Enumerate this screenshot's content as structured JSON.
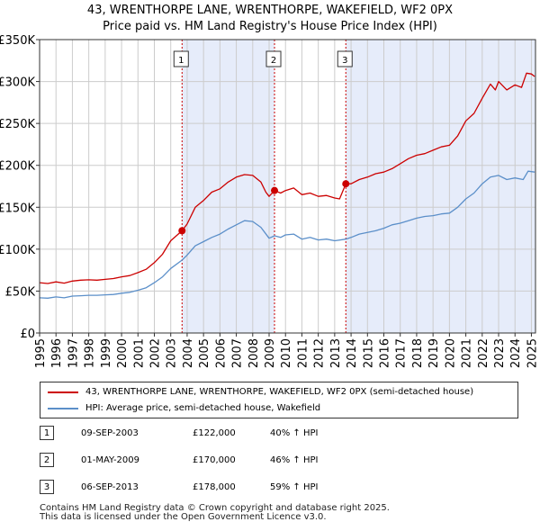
{
  "chart_data": {
    "type": "line",
    "title": "43, WRENTHORPE LANE, WRENTHORPE, WAKEFIELD, WF2 0PX",
    "subtitle": "Price paid vs. HM Land Registry's House Price Index (HPI)",
    "ylim": [
      0,
      350000
    ],
    "xlim": [
      1995.0,
      2025.25
    ],
    "y_ticks": [
      {
        "value": 0,
        "label": "£0"
      },
      {
        "value": 50000,
        "label": "£50K"
      },
      {
        "value": 100000,
        "label": "£100K"
      },
      {
        "value": 150000,
        "label": "£150K"
      },
      {
        "value": 200000,
        "label": "£200K"
      },
      {
        "value": 250000,
        "label": "£250K"
      },
      {
        "value": 300000,
        "label": "£300K"
      },
      {
        "value": 350000,
        "label": "£350K"
      }
    ],
    "x_ticks": [
      "1995",
      "1996",
      "1997",
      "1998",
      "1999",
      "2000",
      "2001",
      "2002",
      "2003",
      "2004",
      "2005",
      "2006",
      "2007",
      "2008",
      "2009",
      "2010",
      "2011",
      "2012",
      "2013",
      "2014",
      "2015",
      "2016",
      "2017",
      "2018",
      "2019",
      "2020",
      "2021",
      "2022",
      "2023",
      "2024",
      "2025"
    ],
    "grid": true,
    "colors": {
      "property": "#cc0000",
      "hpi": "#5b8fc9",
      "shade": "#e6ecfa",
      "vline": "#cc0000",
      "grid": "#cccccc"
    },
    "series": [
      {
        "name": "43, WRENTHORPE LANE, WRENTHORPE, WAKEFIELD, WF2 0PX (semi-detached house)",
        "points": [
          [
            1995.0,
            60000
          ],
          [
            1995.5,
            59000
          ],
          [
            1996.0,
            61000
          ],
          [
            1996.5,
            59500
          ],
          [
            1997.0,
            62000
          ],
          [
            1997.5,
            63000
          ],
          [
            1998.0,
            63500
          ],
          [
            1998.5,
            63000
          ],
          [
            1999.0,
            64000
          ],
          [
            1999.5,
            65000
          ],
          [
            2000.0,
            67000
          ],
          [
            2000.5,
            68500
          ],
          [
            2001.0,
            72000
          ],
          [
            2001.5,
            76000
          ],
          [
            2002.0,
            84000
          ],
          [
            2002.5,
            94000
          ],
          [
            2003.0,
            110000
          ],
          [
            2003.69,
            122000
          ],
          [
            2004.0,
            130000
          ],
          [
            2004.5,
            150000
          ],
          [
            2005.0,
            158000
          ],
          [
            2005.5,
            168000
          ],
          [
            2006.0,
            172000
          ],
          [
            2006.5,
            180000
          ],
          [
            2007.0,
            186000
          ],
          [
            2007.5,
            189000
          ],
          [
            2008.0,
            188000
          ],
          [
            2008.5,
            180000
          ],
          [
            2008.8,
            168000
          ],
          [
            2009.0,
            163000
          ],
          [
            2009.33,
            170000
          ],
          [
            2009.7,
            167000
          ],
          [
            2010.0,
            170000
          ],
          [
            2010.5,
            173000
          ],
          [
            2011.0,
            165000
          ],
          [
            2011.5,
            167000
          ],
          [
            2012.0,
            163000
          ],
          [
            2012.5,
            164000
          ],
          [
            2013.0,
            161000
          ],
          [
            2013.3,
            160000
          ],
          [
            2013.68,
            178000
          ],
          [
            2014.0,
            178000
          ],
          [
            2014.5,
            183000
          ],
          [
            2015.0,
            186000
          ],
          [
            2015.5,
            190000
          ],
          [
            2016.0,
            192000
          ],
          [
            2016.5,
            196000
          ],
          [
            2017.0,
            202000
          ],
          [
            2017.5,
            208000
          ],
          [
            2018.0,
            212000
          ],
          [
            2018.5,
            214000
          ],
          [
            2019.0,
            218000
          ],
          [
            2019.5,
            222000
          ],
          [
            2020.0,
            224000
          ],
          [
            2020.5,
            235000
          ],
          [
            2021.0,
            253000
          ],
          [
            2021.5,
            262000
          ],
          [
            2022.0,
            280000
          ],
          [
            2022.5,
            297000
          ],
          [
            2022.8,
            290000
          ],
          [
            2023.0,
            300000
          ],
          [
            2023.5,
            290000
          ],
          [
            2024.0,
            296000
          ],
          [
            2024.4,
            293000
          ],
          [
            2024.7,
            310000
          ],
          [
            2025.0,
            309000
          ],
          [
            2025.2,
            306000
          ]
        ]
      },
      {
        "name": "HPI: Average price, semi-detached house, Wakefield",
        "points": [
          [
            1995.0,
            42000
          ],
          [
            1995.5,
            41500
          ],
          [
            1996.0,
            43000
          ],
          [
            1996.5,
            42000
          ],
          [
            1997.0,
            44000
          ],
          [
            1997.5,
            44500
          ],
          [
            1998.0,
            45000
          ],
          [
            1998.5,
            45000
          ],
          [
            1999.0,
            45500
          ],
          [
            1999.5,
            46000
          ],
          [
            2000.0,
            47500
          ],
          [
            2000.5,
            48500
          ],
          [
            2001.0,
            51000
          ],
          [
            2001.5,
            54000
          ],
          [
            2002.0,
            60000
          ],
          [
            2002.5,
            67000
          ],
          [
            2003.0,
            77000
          ],
          [
            2003.69,
            87000
          ],
          [
            2004.0,
            93000
          ],
          [
            2004.5,
            104000
          ],
          [
            2005.0,
            109000
          ],
          [
            2005.5,
            114000
          ],
          [
            2006.0,
            118000
          ],
          [
            2006.5,
            124000
          ],
          [
            2007.0,
            129000
          ],
          [
            2007.5,
            134000
          ],
          [
            2008.0,
            133000
          ],
          [
            2008.5,
            126000
          ],
          [
            2009.0,
            113000
          ],
          [
            2009.33,
            116000
          ],
          [
            2009.7,
            114000
          ],
          [
            2010.0,
            117000
          ],
          [
            2010.5,
            118000
          ],
          [
            2011.0,
            112000
          ],
          [
            2011.5,
            114000
          ],
          [
            2012.0,
            111000
          ],
          [
            2012.5,
            112000
          ],
          [
            2013.0,
            110000
          ],
          [
            2013.68,
            112000
          ],
          [
            2014.0,
            114000
          ],
          [
            2014.5,
            118000
          ],
          [
            2015.0,
            120000
          ],
          [
            2015.5,
            122000
          ],
          [
            2016.0,
            125000
          ],
          [
            2016.5,
            129000
          ],
          [
            2017.0,
            131000
          ],
          [
            2017.5,
            134000
          ],
          [
            2018.0,
            137000
          ],
          [
            2018.5,
            139000
          ],
          [
            2019.0,
            140000
          ],
          [
            2019.5,
            142000
          ],
          [
            2020.0,
            143000
          ],
          [
            2020.5,
            150000
          ],
          [
            2021.0,
            160000
          ],
          [
            2021.5,
            167000
          ],
          [
            2022.0,
            178000
          ],
          [
            2022.5,
            186000
          ],
          [
            2023.0,
            188000
          ],
          [
            2023.5,
            183000
          ],
          [
            2024.0,
            185000
          ],
          [
            2024.5,
            183000
          ],
          [
            2024.8,
            193000
          ],
          [
            2025.2,
            192000
          ]
        ]
      }
    ],
    "sales": [
      {
        "label": "1",
        "x": 2003.69,
        "price": 122000
      },
      {
        "label": "2",
        "x": 2009.33,
        "price": 170000
      },
      {
        "label": "3",
        "x": 2013.68,
        "price": 178000
      }
    ]
  },
  "legend": {
    "property_label": "43, WRENTHORPE LANE, WRENTHORPE, WAKEFIELD, WF2 0PX (semi-detached house)",
    "hpi_label": "HPI: Average price, semi-detached house, Wakefield"
  },
  "sales_table": [
    {
      "num": "1",
      "date": "09-SEP-2003",
      "price": "£122,000",
      "hpi": "40% ↑ HPI"
    },
    {
      "num": "2",
      "date": "01-MAY-2009",
      "price": "£170,000",
      "hpi": "46% ↑ HPI"
    },
    {
      "num": "3",
      "date": "06-SEP-2013",
      "price": "£178,000",
      "hpi": "59% ↑ HPI"
    }
  ],
  "footer": {
    "line1": "Contains HM Land Registry data © Crown copyright and database right 2025.",
    "line2": "This data is licensed under the Open Government Licence v3.0."
  }
}
